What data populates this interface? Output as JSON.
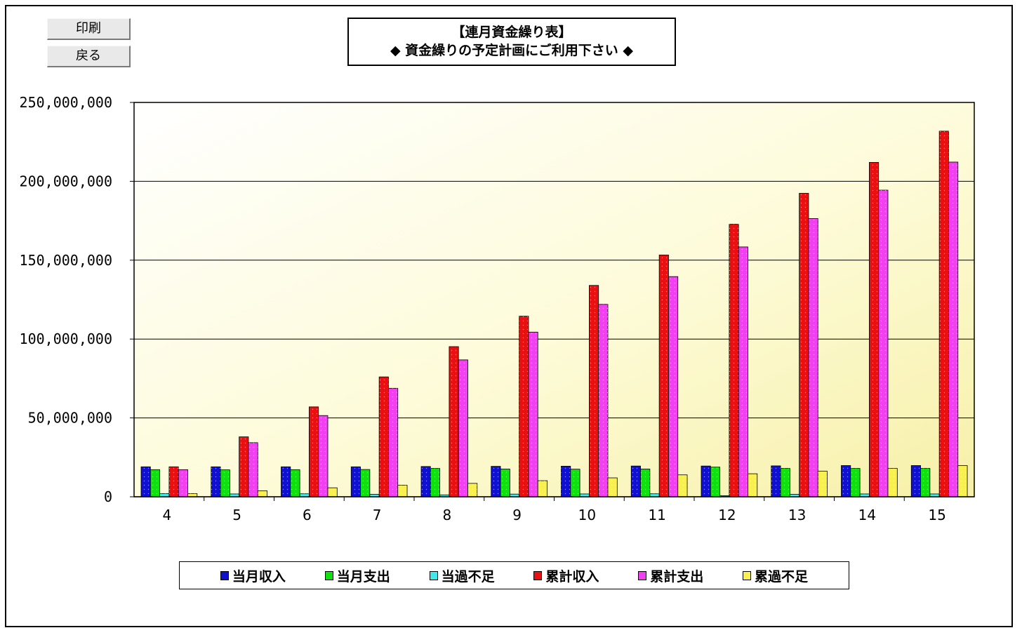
{
  "buttons": {
    "print_label": "印刷",
    "back_label": "戻る"
  },
  "title": {
    "line1": "【連月資金繰り表】",
    "line2": "◆ 資金繰りの予定計画にご利用下さい ◆"
  },
  "colors": {
    "当月収入": "#1010d0",
    "当月支出": "#10e010",
    "当過不足": "#40e8e8",
    "累計収入": "#e81010",
    "累計支出": "#f040f0",
    "累過不足": "#f8f050"
  },
  "chart_data": {
    "type": "bar",
    "title": "",
    "xlabel": "",
    "ylabel": "",
    "ylim": [
      0,
      250000000
    ],
    "yticks": [
      0,
      50000000,
      100000000,
      150000000,
      200000000,
      250000000
    ],
    "ytick_labels": [
      "0",
      "50,000,000",
      "100,000,000",
      "150,000,000",
      "200,000,000",
      "250,000,000"
    ],
    "grid": true,
    "legend_position": "bottom",
    "categories": [
      "4",
      "5",
      "6",
      "7",
      "8",
      "9",
      "10",
      "11",
      "12",
      "13",
      "14",
      "15"
    ],
    "series": [
      {
        "name": "当月収入",
        "values": [
          19000000,
          19000000,
          19000000,
          19000000,
          19200000,
          19300000,
          19400000,
          19500000,
          19500000,
          19600000,
          19800000,
          19800000
        ]
      },
      {
        "name": "当月支出",
        "values": [
          17200000,
          17100000,
          17200000,
          17300000,
          18000000,
          17600000,
          17500000,
          17600000,
          18800000,
          18000000,
          18000000,
          18000000
        ]
      },
      {
        "name": "当過不足",
        "values": [
          2000000,
          1800000,
          1900000,
          1600000,
          1200000,
          1700000,
          1800000,
          1900000,
          700000,
          1600000,
          1800000,
          1800000
        ]
      },
      {
        "name": "累計収入",
        "values": [
          19000000,
          38000000,
          57000000,
          76000000,
          95200000,
          114500000,
          134000000,
          153300000,
          172800000,
          192400000,
          212000000,
          231800000
        ]
      },
      {
        "name": "累計支出",
        "values": [
          17200000,
          34300000,
          51500000,
          68800000,
          86800000,
          104400000,
          122000000,
          139600000,
          158400000,
          176400000,
          194400000,
          212200000
        ]
      },
      {
        "name": "累過不足",
        "values": [
          2000000,
          3800000,
          5700000,
          7300000,
          8500000,
          10200000,
          12000000,
          13900000,
          14600000,
          16200000,
          18000000,
          19800000
        ]
      }
    ]
  }
}
